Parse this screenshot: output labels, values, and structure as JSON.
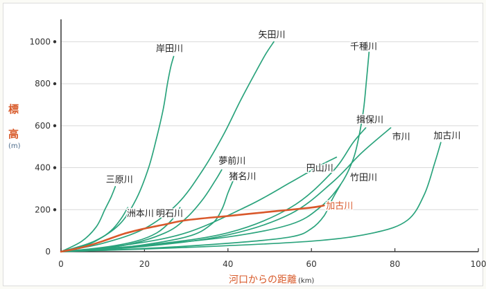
{
  "chart_data": {
    "type": "line",
    "xlabel": "河口からの距離",
    "xunit": "(km)",
    "ylabel_chars": [
      "標",
      "高"
    ],
    "yunit": "(m)",
    "xlim": [
      0,
      100
    ],
    "ylim": [
      0,
      1100
    ],
    "xticks": [
      0,
      20,
      40,
      60,
      80,
      100
    ],
    "yticks": [
      0,
      200,
      400,
      600,
      800,
      1000
    ],
    "grid": true,
    "colors": {
      "river": "#2aa37c",
      "highlight": "#d9582b",
      "axis": "#333333",
      "grid": "#d8d8d8"
    },
    "series": [
      {
        "name": "岸田川",
        "highlight": false,
        "x": [
          0,
          8,
          14,
          18,
          21,
          23,
          24.5,
          25.5,
          26.3,
          27
        ],
        "y": [
          0,
          50,
          130,
          250,
          400,
          550,
          680,
          800,
          880,
          930
        ]
      },
      {
        "name": "矢田川",
        "highlight": false,
        "x": [
          0,
          10,
          20,
          28,
          34,
          39,
          43,
          46.5,
          49,
          51
        ],
        "y": [
          0,
          40,
          110,
          230,
          390,
          560,
          720,
          850,
          940,
          1000
        ]
      },
      {
        "name": "千種川",
        "highlight": false,
        "x": [
          0,
          20,
          40,
          55,
          62,
          67,
          70,
          71.5,
          72.5,
          73.2,
          73.8
        ],
        "y": [
          0,
          30,
          70,
          130,
          210,
          320,
          440,
          560,
          680,
          820,
          950
        ]
      },
      {
        "name": "揖保川",
        "highlight": false,
        "x": [
          0,
          20,
          40,
          55,
          65,
          70,
          73
        ],
        "y": [
          0,
          30,
          90,
          210,
          380,
          520,
          590
        ]
      },
      {
        "name": "市川",
        "highlight": false,
        "x": [
          0,
          20,
          40,
          55,
          65,
          72,
          79
        ],
        "y": [
          0,
          25,
          80,
          180,
          330,
          470,
          590
        ]
      },
      {
        "name": "加古川",
        "highlight": false,
        "x": [
          0,
          30,
          60,
          75,
          83,
          87,
          89.5,
          91
        ],
        "y": [
          0,
          20,
          50,
          90,
          150,
          270,
          420,
          520
        ]
      },
      {
        "name": "円山川",
        "highlight": false,
        "x": [
          0,
          15,
          30,
          45,
          55,
          62,
          66
        ],
        "y": [
          0,
          30,
          90,
          220,
          330,
          410,
          450
        ]
      },
      {
        "name": "竹田川",
        "highlight": false,
        "x": [
          0,
          20,
          40,
          55,
          60,
          63,
          65,
          67
        ],
        "y": [
          0,
          15,
          40,
          70,
          110,
          170,
          250,
          320
        ]
      },
      {
        "name": "夢前川",
        "highlight": false,
        "x": [
          0,
          15,
          25,
          30,
          34,
          37,
          38.5
        ],
        "y": [
          0,
          30,
          90,
          160,
          250,
          340,
          390
        ]
      },
      {
        "name": "猪名川",
        "highlight": false,
        "x": [
          0,
          15,
          30,
          36,
          38.5,
          40,
          41.5
        ],
        "y": [
          0,
          20,
          70,
          130,
          200,
          280,
          350
        ]
      },
      {
        "name": "明石川",
        "highlight": false,
        "x": [
          0,
          10,
          18,
          23,
          26.5,
          28.5
        ],
        "y": [
          0,
          20,
          50,
          90,
          150,
          210
        ]
      },
      {
        "name": "洲本川",
        "highlight": false,
        "x": [
          0,
          6,
          10,
          12.5,
          14.5,
          16
        ],
        "y": [
          0,
          30,
          70,
          110,
          160,
          210
        ]
      },
      {
        "name": "三原川",
        "highlight": false,
        "x": [
          0,
          5,
          8.5,
          10.5,
          12,
          13
        ],
        "y": [
          0,
          50,
          120,
          200,
          260,
          310
        ]
      },
      {
        "name": "加古川",
        "highlight": true,
        "x": [
          0,
          5,
          10,
          15,
          20,
          25,
          30,
          40,
          50,
          60,
          63
        ],
        "y": [
          0,
          20,
          50,
          85,
          110,
          130,
          150,
          170,
          190,
          210,
          220
        ]
      }
    ],
    "labels": [
      {
        "text": "岸田川",
        "x": 26,
        "y": 970,
        "anchor": "middle",
        "highlight": false
      },
      {
        "text": "矢田川",
        "x": 50.5,
        "y": 1035,
        "anchor": "middle",
        "highlight": false
      },
      {
        "text": "千種川",
        "x": 72.5,
        "y": 980,
        "anchor": "middle",
        "highlight": false
      },
      {
        "text": "揖保川",
        "x": 74,
        "y": 630,
        "anchor": "middle",
        "highlight": false
      },
      {
        "text": "市川",
        "x": 81.5,
        "y": 550,
        "anchor": "middle",
        "highlight": false
      },
      {
        "text": "加古川",
        "x": 92.5,
        "y": 555,
        "anchor": "middle",
        "highlight": false
      },
      {
        "text": "夢前川",
        "x": 41,
        "y": 435,
        "anchor": "middle",
        "highlight": false
      },
      {
        "text": "猪名川",
        "x": 43.5,
        "y": 360,
        "anchor": "middle",
        "highlight": false
      },
      {
        "text": "円山川",
        "x": 62,
        "y": 400,
        "anchor": "middle",
        "highlight": false
      },
      {
        "text": "竹田川",
        "x": 72.5,
        "y": 355,
        "anchor": "middle",
        "highlight": false
      },
      {
        "text": "三原川",
        "x": 14,
        "y": 345,
        "anchor": "middle",
        "highlight": false
      },
      {
        "text": "洲本川",
        "x": 19,
        "y": 185,
        "anchor": "middle",
        "highlight": false
      },
      {
        "text": "明石川",
        "x": 26,
        "y": 185,
        "anchor": "middle",
        "highlight": false
      },
      {
        "text": "加古川",
        "x": 63.5,
        "y": 220,
        "anchor": "start",
        "highlight": true
      }
    ]
  }
}
